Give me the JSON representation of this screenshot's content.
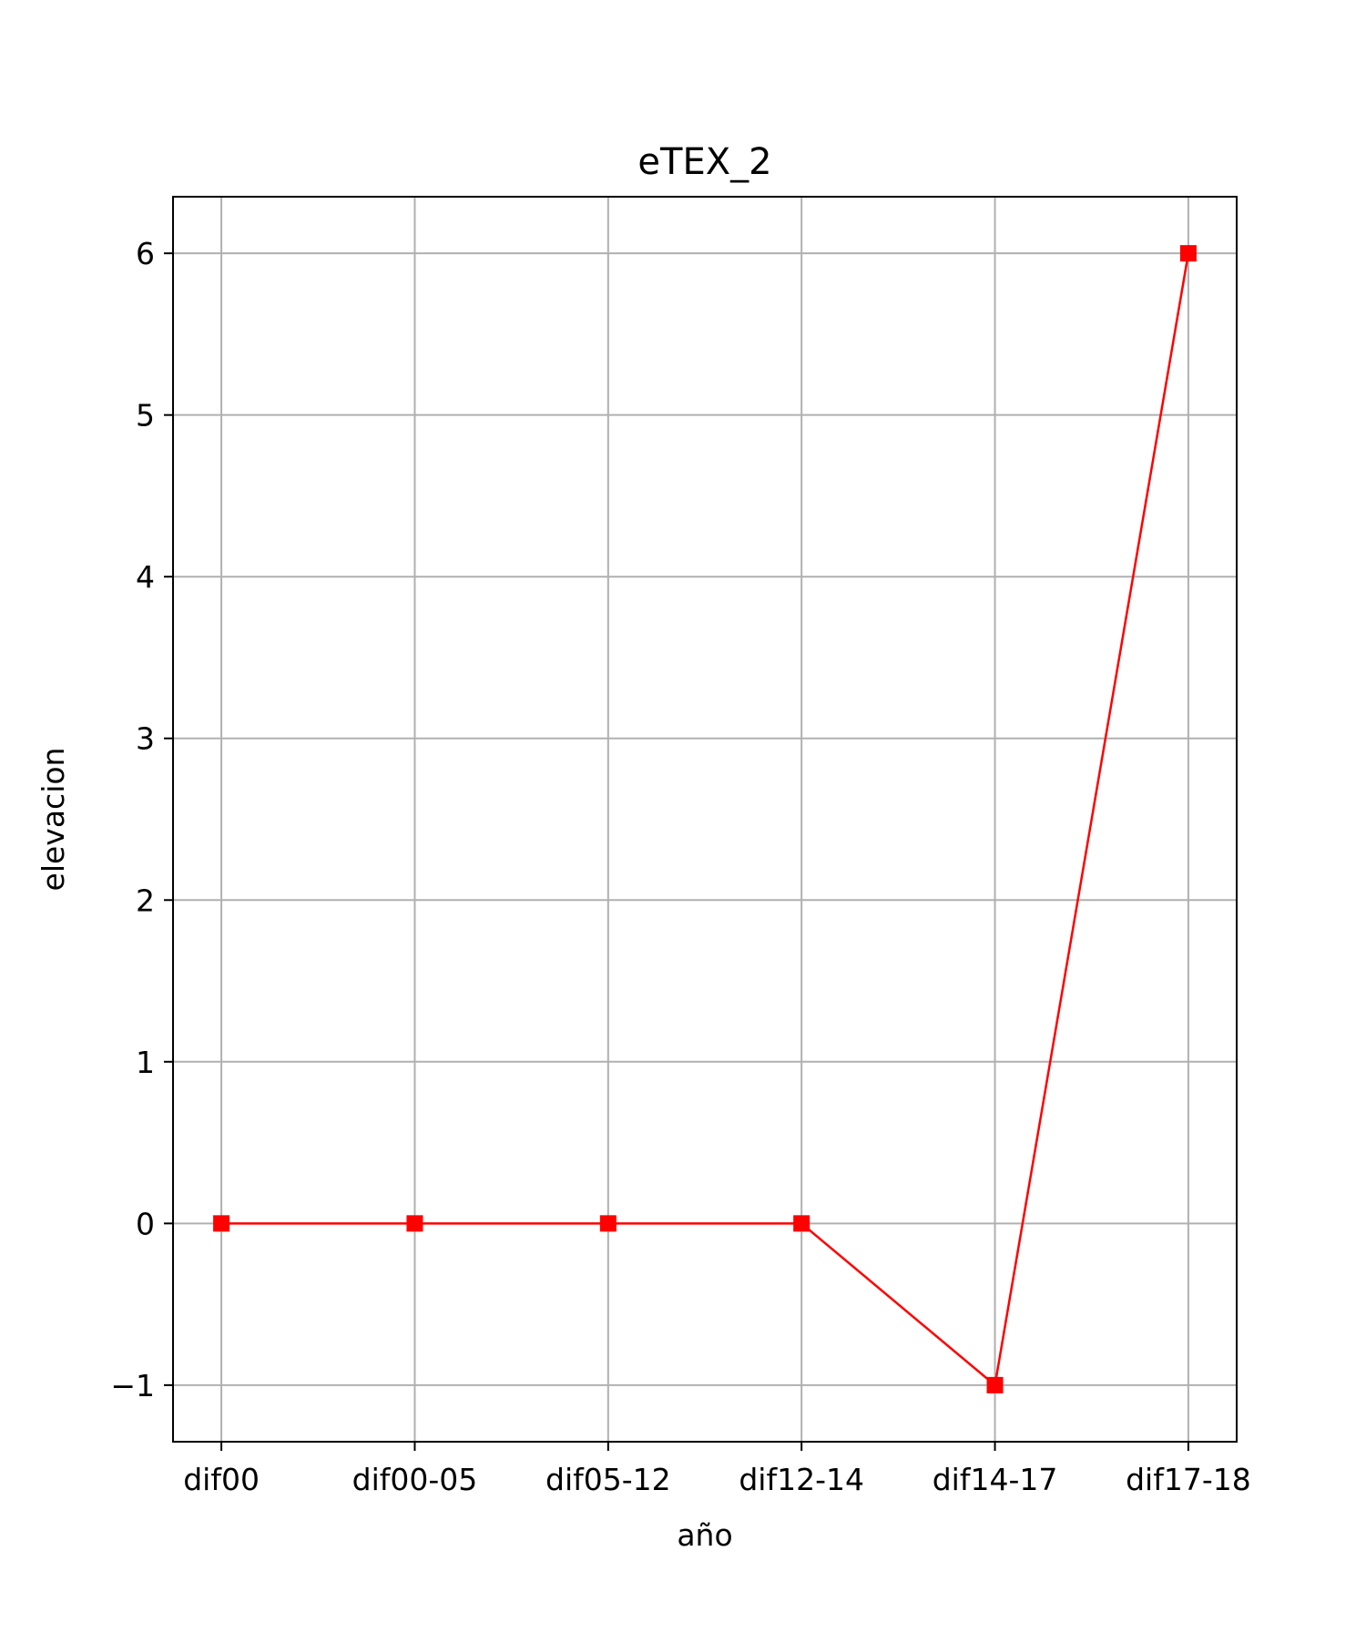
{
  "chart_data": {
    "type": "line",
    "title": "eTEX_2",
    "xlabel": "año",
    "ylabel": "elevacion",
    "categories": [
      "dif00",
      "dif00-05",
      "dif05-12",
      "dif12-14",
      "dif14-17",
      "dif17-18"
    ],
    "series": [
      {
        "values": [
          0,
          0,
          0,
          0,
          -1,
          6
        ],
        "color": "#ff0000",
        "marker": "square"
      }
    ],
    "ylim": [
      -1.35,
      6.35
    ],
    "yticks": [
      -1,
      0,
      1,
      2,
      3,
      4,
      5,
      6
    ],
    "ytick_labels": [
      "−1",
      "0",
      "1",
      "2",
      "3",
      "4",
      "5",
      "6"
    ],
    "grid": true,
    "grid_color": "#b0b0b0",
    "axis_color": "#000000"
  }
}
